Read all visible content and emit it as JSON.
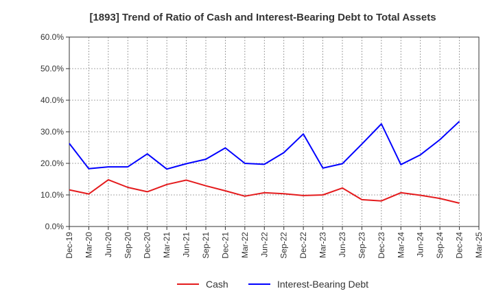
{
  "chart_data": {
    "type": "line",
    "title": "[1893]  Trend of Ratio of Cash and Interest-Bearing Debt to Total Assets",
    "xlabel": "",
    "ylabel": "",
    "x": [
      "Dec-19",
      "Mar-20",
      "Jun-20",
      "Sep-20",
      "Dec-20",
      "Mar-21",
      "Jun-21",
      "Sep-21",
      "Dec-21",
      "Mar-22",
      "Jun-22",
      "Sep-22",
      "Dec-22",
      "Mar-23",
      "Jun-23",
      "Sep-23",
      "Dec-23",
      "Mar-24",
      "Jun-24",
      "Sep-24",
      "Dec-24",
      "Mar-25"
    ],
    "ylim": [
      0,
      60
    ],
    "yticks": [
      0,
      10,
      20,
      30,
      40,
      50,
      60
    ],
    "ytick_labels": [
      "0.0%",
      "10.0%",
      "20.0%",
      "30.0%",
      "40.0%",
      "50.0%",
      "60.0%"
    ],
    "grid": true,
    "legend_position": "bottom",
    "series": [
      {
        "name": "Cash",
        "color": "#e41a1c",
        "values": [
          11.6,
          10.3,
          14.8,
          12.4,
          11.0,
          13.3,
          14.7,
          12.9,
          11.3,
          9.6,
          10.7,
          10.4,
          9.8,
          10.0,
          12.2,
          8.5,
          8.1,
          10.7,
          9.9,
          8.9,
          7.4,
          null
        ]
      },
      {
        "name": "Interest-Bearing Debt",
        "color": "#0000ff",
        "values": [
          26.3,
          18.3,
          18.9,
          18.9,
          23.0,
          18.2,
          19.9,
          21.3,
          24.9,
          20.0,
          19.7,
          23.4,
          29.3,
          18.5,
          19.9,
          26.1,
          32.5,
          19.6,
          22.7,
          27.5,
          33.3,
          null
        ]
      }
    ]
  }
}
